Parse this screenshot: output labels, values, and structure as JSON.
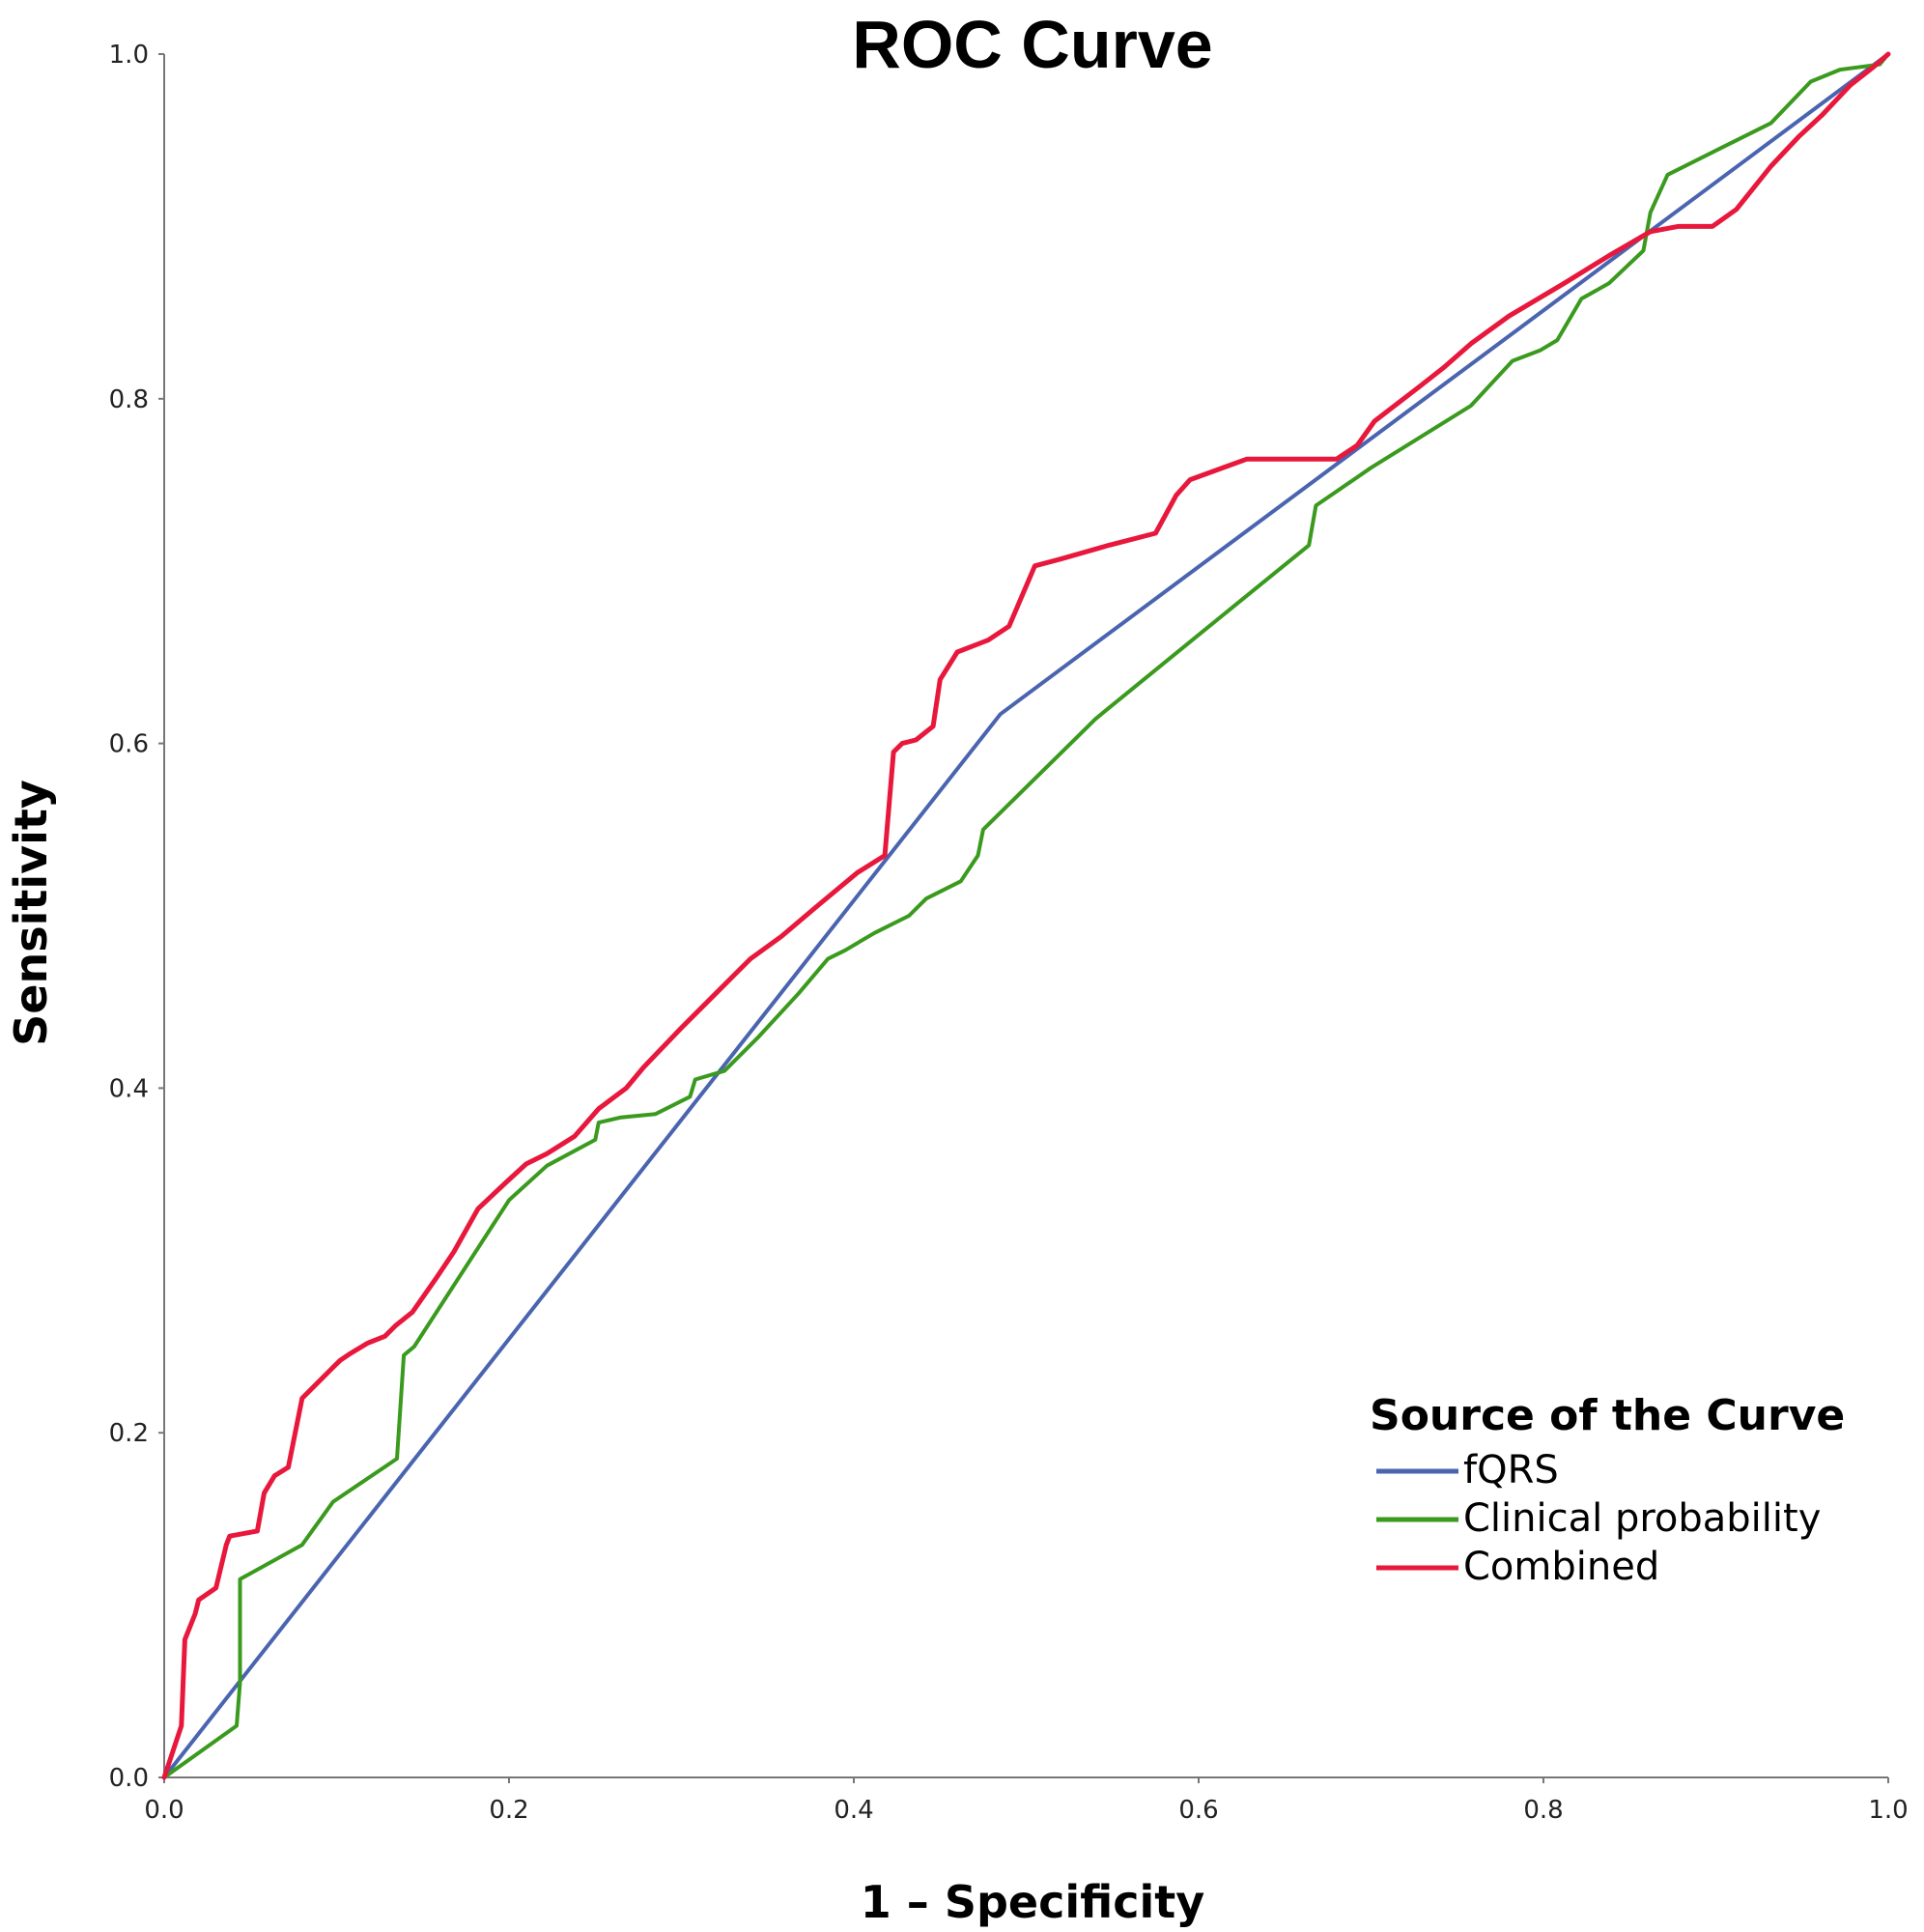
{
  "chart_data": {
    "type": "line",
    "title": "ROC Curve",
    "xlabel": "1 – Specificity",
    "ylabel": "Sensitivity",
    "xlim": [
      0,
      1
    ],
    "ylim": [
      0,
      1
    ],
    "x_ticks": [
      "0.0",
      "0.2",
      "0.4",
      "0.6",
      "0.8",
      "1.0"
    ],
    "y_ticks": [
      "0.0",
      "0.2",
      "0.4",
      "0.6",
      "0.8",
      "1.0"
    ],
    "grid": false,
    "legend": {
      "title": "Source of the Curve",
      "position": "bottom-right"
    },
    "series": [
      {
        "name": "fQRS",
        "color": "#4a64b0",
        "x": [
          0.0,
          0.485,
          1.0
        ],
        "y": [
          0.0,
          0.617,
          1.0
        ]
      },
      {
        "name": "Clinical probability",
        "color": "#3a9a1e",
        "x": [
          0.0,
          0.042,
          0.044,
          0.044,
          0.08,
          0.098,
          0.135,
          0.139,
          0.145,
          0.2,
          0.222,
          0.25,
          0.252,
          0.265,
          0.285,
          0.305,
          0.308,
          0.325,
          0.345,
          0.368,
          0.385,
          0.395,
          0.412,
          0.432,
          0.442,
          0.462,
          0.472,
          0.475,
          0.54,
          0.546,
          0.6,
          0.664,
          0.668,
          0.7,
          0.758,
          0.782,
          0.798,
          0.808,
          0.822,
          0.838,
          0.858,
          0.862,
          0.872,
          0.902,
          0.932,
          0.955,
          0.972,
          0.995,
          1.0
        ],
        "y": [
          0.0,
          0.03,
          0.055,
          0.115,
          0.135,
          0.16,
          0.185,
          0.245,
          0.25,
          0.335,
          0.355,
          0.37,
          0.38,
          0.383,
          0.385,
          0.395,
          0.405,
          0.41,
          0.43,
          0.455,
          0.475,
          0.48,
          0.49,
          0.5,
          0.51,
          0.52,
          0.535,
          0.55,
          0.614,
          0.619,
          0.663,
          0.715,
          0.738,
          0.76,
          0.796,
          0.822,
          0.828,
          0.834,
          0.858,
          0.867,
          0.886,
          0.908,
          0.93,
          0.945,
          0.96,
          0.984,
          0.991,
          0.994,
          1.0
        ]
      },
      {
        "name": "Combined",
        "color": "#e8173c",
        "x": [
          0.0,
          0.01,
          0.012,
          0.018,
          0.02,
          0.03,
          0.036,
          0.038,
          0.054,
          0.058,
          0.064,
          0.072,
          0.08,
          0.088,
          0.094,
          0.098,
          0.102,
          0.108,
          0.118,
          0.128,
          0.134,
          0.144,
          0.158,
          0.168,
          0.182,
          0.198,
          0.21,
          0.222,
          0.238,
          0.252,
          0.268,
          0.278,
          0.3,
          0.32,
          0.34,
          0.358,
          0.378,
          0.402,
          0.418,
          0.423,
          0.428,
          0.436,
          0.446,
          0.45,
          0.46,
          0.478,
          0.49,
          0.505,
          0.52,
          0.548,
          0.575,
          0.587,
          0.595,
          0.628,
          0.68,
          0.692,
          0.702,
          0.728,
          0.742,
          0.758,
          0.78,
          0.812,
          0.838,
          0.862,
          0.878,
          0.898,
          0.912,
          0.932,
          0.948,
          0.962,
          0.978,
          0.992,
          1.0
        ],
        "y": [
          0.0,
          0.03,
          0.08,
          0.095,
          0.103,
          0.11,
          0.135,
          0.14,
          0.143,
          0.165,
          0.175,
          0.18,
          0.22,
          0.228,
          0.234,
          0.238,
          0.242,
          0.246,
          0.252,
          0.256,
          0.262,
          0.27,
          0.29,
          0.305,
          0.33,
          0.345,
          0.356,
          0.362,
          0.372,
          0.388,
          0.4,
          0.412,
          0.435,
          0.455,
          0.475,
          0.488,
          0.505,
          0.525,
          0.535,
          0.595,
          0.6,
          0.602,
          0.61,
          0.637,
          0.653,
          0.66,
          0.668,
          0.703,
          0.707,
          0.715,
          0.722,
          0.744,
          0.753,
          0.765,
          0.765,
          0.773,
          0.787,
          0.807,
          0.818,
          0.832,
          0.848,
          0.867,
          0.883,
          0.897,
          0.9,
          0.9,
          0.91,
          0.935,
          0.952,
          0.965,
          0.982,
          0.993,
          1.0
        ]
      }
    ]
  }
}
